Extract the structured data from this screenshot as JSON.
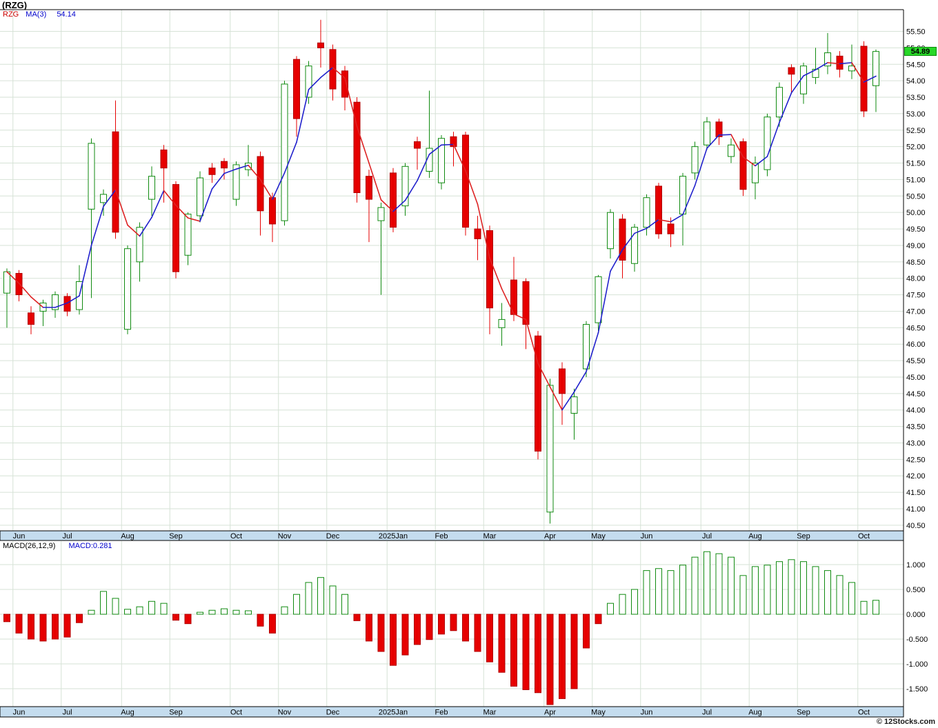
{
  "title": "(RZG)",
  "watermark": "© 12Stocks.com",
  "price_panel": {
    "legend": {
      "symbol": "RZG",
      "ma_label": "MA(3)",
      "ma_value": "54.14"
    },
    "last_price_label": "54.89",
    "axis_labels": [
      "55.50",
      "55.00",
      "54.50",
      "54.00",
      "53.50",
      "53.00",
      "52.50",
      "52.00",
      "51.50",
      "51.00",
      "50.50",
      "50.00",
      "49.50",
      "49.00",
      "48.50",
      "48.00",
      "47.50",
      "47.00",
      "46.50",
      "46.00",
      "45.50",
      "45.00",
      "44.50",
      "44.00",
      "43.50",
      "43.00",
      "42.50",
      "42.00",
      "41.50",
      "41.00",
      "40.50"
    ]
  },
  "macd_panel": {
    "indicator_label": "MACD(26,12,9)",
    "indicator_value": "MACD:0.281",
    "axis_labels": [
      "1.000",
      "0.500",
      "0.000",
      "-0.500",
      "-1.000",
      "-1.500"
    ]
  },
  "colors": {
    "up": "#0f8a0f",
    "down": "#e60000",
    "down_stroke": "#b00000",
    "ma_up": "#2020cc",
    "ma_down": "#dd2222",
    "grid": "#d6e2d6",
    "strip_bg": "#c4dcee",
    "axis_line": "#000000",
    "badge_bg": "#28d828"
  },
  "chart_data": [
    {
      "type": "candlestick",
      "title": "(RZG)",
      "timeframe": "weekly",
      "ylim": [
        40.5,
        55.5
      ],
      "y_step": 0.5,
      "months": [
        {
          "label": "Jun",
          "i": 1
        },
        {
          "label": "Jul",
          "i": 5
        },
        {
          "label": "Aug",
          "i": 10
        },
        {
          "label": "Sep",
          "i": 14
        },
        {
          "label": "Oct",
          "i": 19
        },
        {
          "label": "Nov",
          "i": 23
        },
        {
          "label": "Dec",
          "i": 27
        },
        {
          "label": "2025Jan",
          "i": 32
        },
        {
          "label": "Feb",
          "i": 36
        },
        {
          "label": "Mar",
          "i": 40
        },
        {
          "label": "Apr",
          "i": 45
        },
        {
          "label": "May",
          "i": 49
        },
        {
          "label": "Jun",
          "i": 53
        },
        {
          "label": "Jul",
          "i": 58
        },
        {
          "label": "Aug",
          "i": 62
        },
        {
          "label": "Sep",
          "i": 66
        },
        {
          "label": "Oct",
          "i": 71
        }
      ],
      "ohlc": [
        [
          47.55,
          48.3,
          46.5,
          48.2
        ],
        [
          48.15,
          48.25,
          47.3,
          47.5
        ],
        [
          46.95,
          47.15,
          46.3,
          46.6
        ],
        [
          47.0,
          47.35,
          46.55,
          47.25
        ],
        [
          47.05,
          47.6,
          46.8,
          47.5
        ],
        [
          47.45,
          47.55,
          46.85,
          47.0
        ],
        [
          47.05,
          48.4,
          46.9,
          47.9
        ],
        [
          50.1,
          52.25,
          47.4,
          52.1
        ],
        [
          50.3,
          50.7,
          49.9,
          50.55
        ],
        [
          52.45,
          53.4,
          49.2,
          49.4
        ],
        [
          46.45,
          49.0,
          46.3,
          48.9
        ],
        [
          48.5,
          49.7,
          47.9,
          49.55
        ],
        [
          50.4,
          51.4,
          49.9,
          51.1
        ],
        [
          51.9,
          52.05,
          50.3,
          51.35
        ],
        [
          50.85,
          50.95,
          48.0,
          48.2
        ],
        [
          48.7,
          50.0,
          48.4,
          49.95
        ],
        [
          49.9,
          51.25,
          49.7,
          51.05
        ],
        [
          51.35,
          51.5,
          50.9,
          51.15
        ],
        [
          51.55,
          51.65,
          51.0,
          51.35
        ],
        [
          50.4,
          51.55,
          50.2,
          51.45
        ],
        [
          51.3,
          52.05,
          51.1,
          51.5
        ],
        [
          51.7,
          51.85,
          49.3,
          50.05
        ],
        [
          50.45,
          50.6,
          49.1,
          49.65
        ],
        [
          49.75,
          54.0,
          49.6,
          53.9
        ],
        [
          54.65,
          54.75,
          52.3,
          52.85
        ],
        [
          53.5,
          54.6,
          53.3,
          54.45
        ],
        [
          55.15,
          55.85,
          54.4,
          55.0
        ],
        [
          54.95,
          55.1,
          53.4,
          53.75
        ],
        [
          54.3,
          54.45,
          53.1,
          53.5
        ],
        [
          53.35,
          53.5,
          50.3,
          50.6
        ],
        [
          51.1,
          51.3,
          49.1,
          50.4
        ],
        [
          49.75,
          50.3,
          47.5,
          50.15
        ],
        [
          51.2,
          51.35,
          49.4,
          49.55
        ],
        [
          50.2,
          51.5,
          49.9,
          51.4
        ],
        [
          52.15,
          52.3,
          51.3,
          51.95
        ],
        [
          51.25,
          53.7,
          51.05,
          51.95
        ],
        [
          50.9,
          52.35,
          50.7,
          52.25
        ],
        [
          52.3,
          52.45,
          51.4,
          52.0
        ],
        [
          52.35,
          52.45,
          49.3,
          49.55
        ],
        [
          49.5,
          49.9,
          48.55,
          49.2
        ],
        [
          49.45,
          49.6,
          46.3,
          47.1
        ],
        [
          46.5,
          47.25,
          45.95,
          46.75
        ],
        [
          47.95,
          48.65,
          46.7,
          46.9
        ],
        [
          47.9,
          48.0,
          45.85,
          46.6
        ],
        [
          46.25,
          46.4,
          42.5,
          42.75
        ],
        [
          40.9,
          44.95,
          40.55,
          44.75
        ],
        [
          45.25,
          45.45,
          43.55,
          44.5
        ],
        [
          43.9,
          44.65,
          43.1,
          44.4
        ],
        [
          45.25,
          46.7,
          45.0,
          46.6
        ],
        [
          46.65,
          48.1,
          46.4,
          48.05
        ],
        [
          48.9,
          50.1,
          48.6,
          50.0
        ],
        [
          49.8,
          49.95,
          48.0,
          48.55
        ],
        [
          48.45,
          49.65,
          48.2,
          49.55
        ],
        [
          49.55,
          50.55,
          49.3,
          50.45
        ],
        [
          50.8,
          50.9,
          49.2,
          49.35
        ],
        [
          49.65,
          49.85,
          48.95,
          49.35
        ],
        [
          49.95,
          51.2,
          49.0,
          51.1
        ],
        [
          51.2,
          52.15,
          51.0,
          52.0
        ],
        [
          52.05,
          52.9,
          51.9,
          52.75
        ],
        [
          52.75,
          52.85,
          52.05,
          52.3
        ],
        [
          51.7,
          52.25,
          51.5,
          52.05
        ],
        [
          52.15,
          52.25,
          50.5,
          50.7
        ],
        [
          50.9,
          51.7,
          50.4,
          51.5
        ],
        [
          51.3,
          53.0,
          51.1,
          52.9
        ],
        [
          52.9,
          53.95,
          52.6,
          53.8
        ],
        [
          54.4,
          54.5,
          53.6,
          54.2
        ],
        [
          53.6,
          54.55,
          53.3,
          54.45
        ],
        [
          54.1,
          55.0,
          53.9,
          54.35
        ],
        [
          54.45,
          55.45,
          54.2,
          54.85
        ],
        [
          54.75,
          54.9,
          54.1,
          54.35
        ],
        [
          54.3,
          55.1,
          54.05,
          54.45
        ],
        [
          55.05,
          55.2,
          52.9,
          53.08
        ],
        [
          53.85,
          54.95,
          53.05,
          54.89
        ]
      ],
      "overlays": [
        {
          "name": "MA(3)",
          "type": "line",
          "derived_from": "3-period moving average of close",
          "last_value": 54.14
        }
      ]
    },
    {
      "type": "bar",
      "title": "MACD(26,12,9)",
      "last_value": 0.281,
      "ylim": [
        -1.861,
        1.472
      ],
      "values": [
        -0.15,
        -0.38,
        -0.5,
        -0.54,
        -0.5,
        -0.46,
        -0.17,
        0.08,
        0.46,
        0.32,
        0.1,
        0.15,
        0.26,
        0.22,
        -0.12,
        -0.19,
        0.04,
        0.08,
        0.11,
        0.08,
        0.07,
        -0.24,
        -0.38,
        0.15,
        0.4,
        0.64,
        0.74,
        0.57,
        0.4,
        -0.13,
        -0.54,
        -0.75,
        -1.03,
        -0.82,
        -0.61,
        -0.51,
        -0.4,
        -0.33,
        -0.54,
        -0.75,
        -0.96,
        -1.17,
        -1.45,
        -1.52,
        -1.58,
        -1.82,
        -1.7,
        -1.5,
        -0.68,
        -0.19,
        0.22,
        0.4,
        0.5,
        0.88,
        0.92,
        0.88,
        0.99,
        1.15,
        1.26,
        1.22,
        1.15,
        0.78,
        0.96,
        0.99,
        1.06,
        1.1,
        1.06,
        0.96,
        0.88,
        0.78,
        0.64,
        0.26,
        0.281
      ]
    }
  ]
}
